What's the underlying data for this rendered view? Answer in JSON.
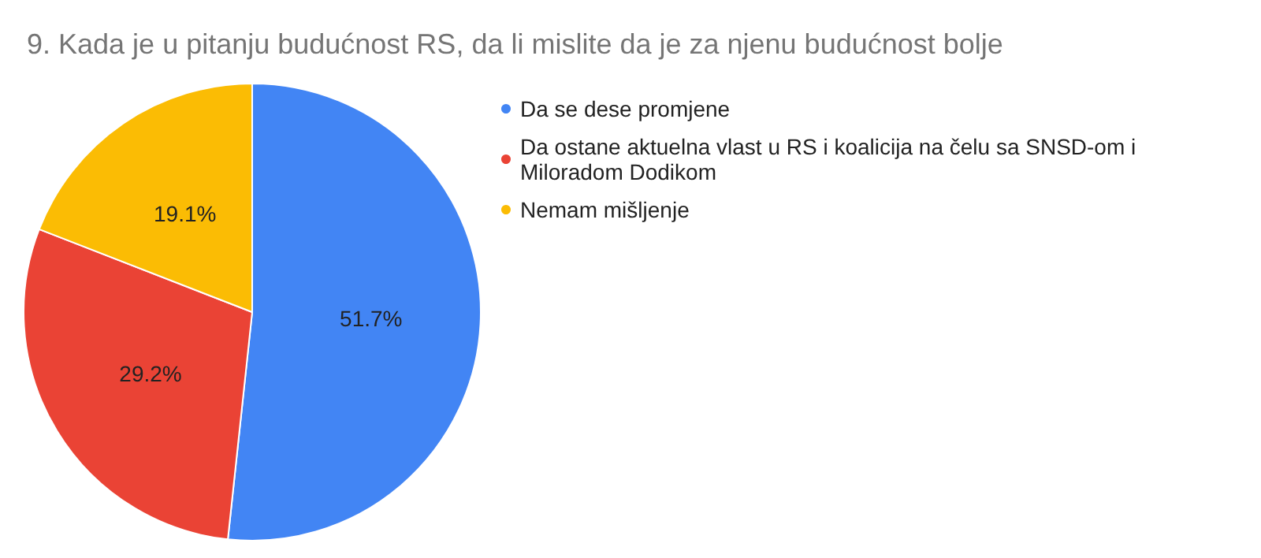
{
  "chart_data": {
    "type": "pie",
    "title": "9. Kada je u pitanju budućnost RS, da li mislite da je za njenu budućnost bolje",
    "categories": [
      "Da se dese promjene",
      "Da ostane aktuelna vlast u RS i koalicija na čelu sa SNSD-om i Miloradom Dodikom",
      "Nemam mišljenje"
    ],
    "values": [
      51.7,
      29.2,
      19.1
    ],
    "value_labels": [
      "51.7%",
      "29.2%",
      "19.1%"
    ],
    "colors": [
      "#4285f4",
      "#ea4335",
      "#fbbc04"
    ],
    "legend": "top right"
  }
}
